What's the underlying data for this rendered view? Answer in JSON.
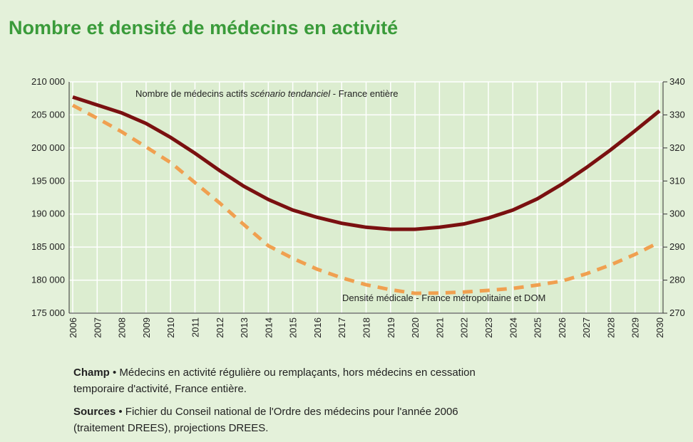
{
  "chart_data": {
    "type": "line",
    "title": "Nombre et densité de médecins en activité",
    "annotations": [
      {
        "parts": [
          "Nombre de médecins actifs ",
          "scénario tendanciel",
          " - France entière"
        ]
      },
      {
        "parts": [
          "Densité médicale - France métropolitaine et DOM"
        ]
      }
    ],
    "categories": [
      "2006",
      "2007",
      "2008",
      "2009",
      "2010",
      "2011",
      "2012",
      "2013",
      "2014",
      "2015",
      "2016",
      "2017",
      "2018",
      "2019",
      "2020",
      "2021",
      "2022",
      "2023",
      "2024",
      "2025",
      "2026",
      "2027",
      "2028",
      "2029",
      "2030"
    ],
    "series": [
      {
        "name": "Nombre de médecins actifs",
        "color": "#7a1010",
        "line_style": "solid",
        "axis": "y",
        "values": [
          207700,
          206500,
          205300,
          203700,
          201600,
          199200,
          196600,
          194200,
          192200,
          190600,
          189500,
          188600,
          188000,
          187700,
          187700,
          188000,
          188500,
          189400,
          190600,
          192300,
          194500,
          197000,
          199700,
          202600,
          205600
        ]
      },
      {
        "name": "Densité médicale",
        "color": "#f0a050",
        "line_style": "dashed",
        "axis": "y2",
        "values": [
          332.9,
          329,
          324.9,
          320.3,
          315.6,
          309.5,
          303.4,
          296.8,
          290.4,
          286.6,
          283.3,
          280.7,
          278.6,
          277.1,
          276,
          276.1,
          276.4,
          276.9,
          277.5,
          278.5,
          279.7,
          281.9,
          284.6,
          287.8,
          291.5
        ]
      }
    ],
    "ylim": [
      175000,
      210000
    ],
    "yticks": [
      {
        "value": 175000,
        "label": "175 000"
      },
      {
        "value": 180000,
        "label": "180 000"
      },
      {
        "value": 185000,
        "label": "185 000"
      },
      {
        "value": 190000,
        "label": "190 000"
      },
      {
        "value": 195000,
        "label": "195 000"
      },
      {
        "value": 200000,
        "label": "200 000"
      },
      {
        "value": 205000,
        "label": "205 000"
      },
      {
        "value": 210000,
        "label": "210 000"
      }
    ],
    "y2lim": [
      270,
      340
    ],
    "y2ticks": [
      270,
      280,
      290,
      300,
      310,
      320,
      330,
      340
    ],
    "grid": true,
    "notes": [
      {
        "label": "Champ",
        "lines": [
          " • Médecins en activité régulière ou remplaçants, hors médecins en cessation",
          "temporaire d'activité, France entière."
        ]
      },
      {
        "label": "Sources",
        "lines": [
          " • Fichier du Conseil national de l'Ordre des médecins pour l'année 2006",
          "(traitement DREES), projections DREES."
        ]
      }
    ]
  }
}
